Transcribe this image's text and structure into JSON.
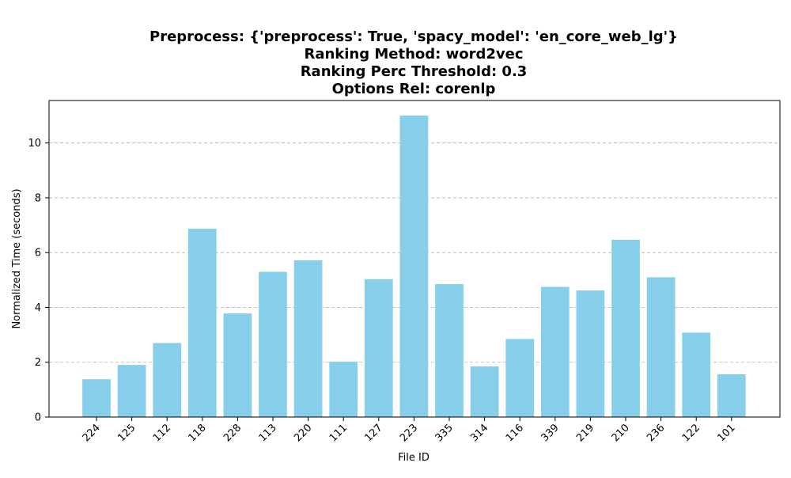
{
  "chart_data": {
    "type": "bar",
    "title_lines": [
      "Preprocess: {'preprocess': True, 'spacy_model': 'en_core_web_lg'}",
      "Ranking Method: word2vec",
      "Ranking Perc Threshold: 0.3",
      "Options Rel: corenlp"
    ],
    "xlabel": "File ID",
    "ylabel": "Normalized Time (seconds)",
    "categories": [
      "224",
      "125",
      "112",
      "118",
      "228",
      "113",
      "220",
      "111",
      "127",
      "223",
      "335",
      "314",
      "116",
      "339",
      "219",
      "210",
      "236",
      "122",
      "101"
    ],
    "values": [
      1.38,
      1.9,
      2.7,
      6.87,
      3.78,
      5.3,
      5.72,
      2.02,
      5.03,
      11.0,
      4.85,
      1.85,
      2.85,
      4.75,
      4.62,
      6.47,
      5.1,
      3.08,
      1.56
    ],
    "yticks": [
      "0",
      "2",
      "4",
      "6",
      "8",
      "10"
    ],
    "ylim": [
      0,
      11.55
    ],
    "grid": "y-dashed",
    "bar_color": "#87ceeb",
    "grid_color": "#b0b0b0"
  }
}
